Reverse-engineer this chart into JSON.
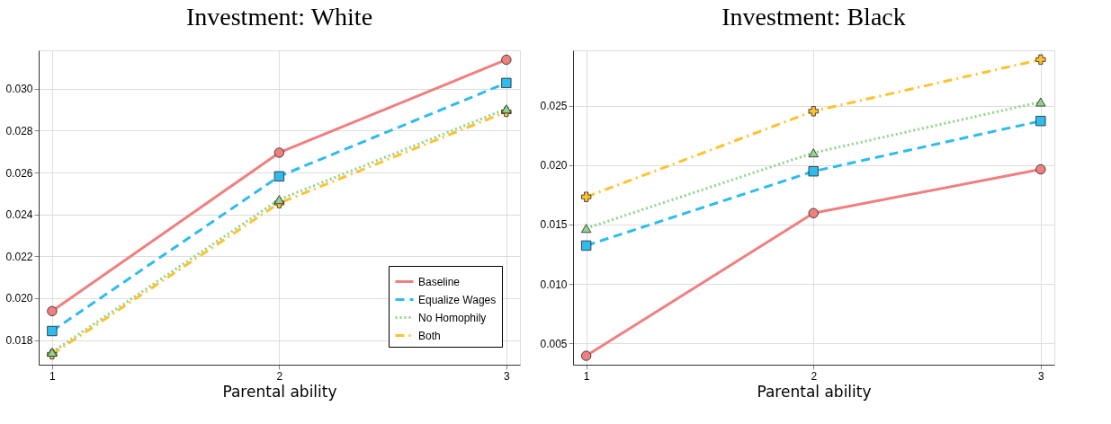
{
  "chart_data": [
    {
      "type": "line",
      "title": "Investment: White",
      "xlabel": "Parental ability",
      "x": [
        1,
        2,
        3
      ],
      "xlim": [
        0.941,
        3.06
      ],
      "xticks": [
        {
          "value": 1,
          "label": "1"
        },
        {
          "value": 2,
          "label": "2"
        },
        {
          "value": 3,
          "label": "3"
        }
      ],
      "ylim": [
        0.01682,
        0.03184
      ],
      "yticks": [
        {
          "value": 0.018,
          "label": "0.018"
        },
        {
          "value": 0.02,
          "label": "0.020"
        },
        {
          "value": 0.022,
          "label": "0.022"
        },
        {
          "value": 0.024,
          "label": "0.024"
        },
        {
          "value": 0.026,
          "label": "0.026"
        },
        {
          "value": 0.028,
          "label": "0.028"
        },
        {
          "value": 0.03,
          "label": "0.030"
        }
      ],
      "grid": true,
      "legend": "bottom right",
      "series": [
        {
          "name": "Baseline",
          "color": "#f07f7f",
          "line_style": "solid",
          "marker": "circle",
          "values": [
            0.01938,
            0.02695,
            0.03139
          ]
        },
        {
          "name": "Equalize Wages",
          "color": "#2ebcee",
          "line_style": "dashed",
          "marker": "square",
          "values": [
            0.01843,
            0.02582,
            0.03028
          ]
        },
        {
          "name": "No Homophily",
          "color": "#8fd48a",
          "line_style": "dotted",
          "marker": "triangle",
          "values": [
            0.01742,
            0.02471,
            0.02904
          ]
        },
        {
          "name": "Both",
          "color": "#fdc22e",
          "line_style": "dashdot",
          "marker": "cross",
          "values": [
            0.01732,
            0.02454,
            0.0289
          ]
        }
      ]
    },
    {
      "type": "line",
      "title": "Investment: Black",
      "xlabel": "Parental ability",
      "x": [
        1,
        2,
        3
      ],
      "xlim": [
        0.942,
        3.06
      ],
      "xticks": [
        {
          "value": 1,
          "label": "1"
        },
        {
          "value": 2,
          "label": "2"
        },
        {
          "value": 3,
          "label": "3"
        }
      ],
      "ylim": [
        0.0032,
        0.02967
      ],
      "yticks": [
        {
          "value": 0.005,
          "label": "0.005"
        },
        {
          "value": 0.01,
          "label": "0.010"
        },
        {
          "value": 0.015,
          "label": "0.015"
        },
        {
          "value": 0.02,
          "label": "0.020"
        },
        {
          "value": 0.025,
          "label": "0.025"
        }
      ],
      "grid": true,
      "legend": false,
      "series": [
        {
          "color": "#f07f7f",
          "line_style": "solid",
          "marker": "circle",
          "values": [
            0.00395,
            0.01596,
            0.01965
          ]
        },
        {
          "color": "#2ebcee",
          "line_style": "dashed",
          "marker": "square",
          "values": [
            0.01323,
            0.01948,
            0.02372
          ]
        },
        {
          "color": "#8fd48a",
          "line_style": "dotted",
          "marker": "triangle",
          "values": [
            0.01468,
            0.02104,
            0.02532
          ]
        },
        {
          "color": "#fdc22e",
          "line_style": "dashdot",
          "marker": "cross",
          "values": [
            0.01733,
            0.02454,
            0.02889
          ]
        }
      ]
    }
  ]
}
